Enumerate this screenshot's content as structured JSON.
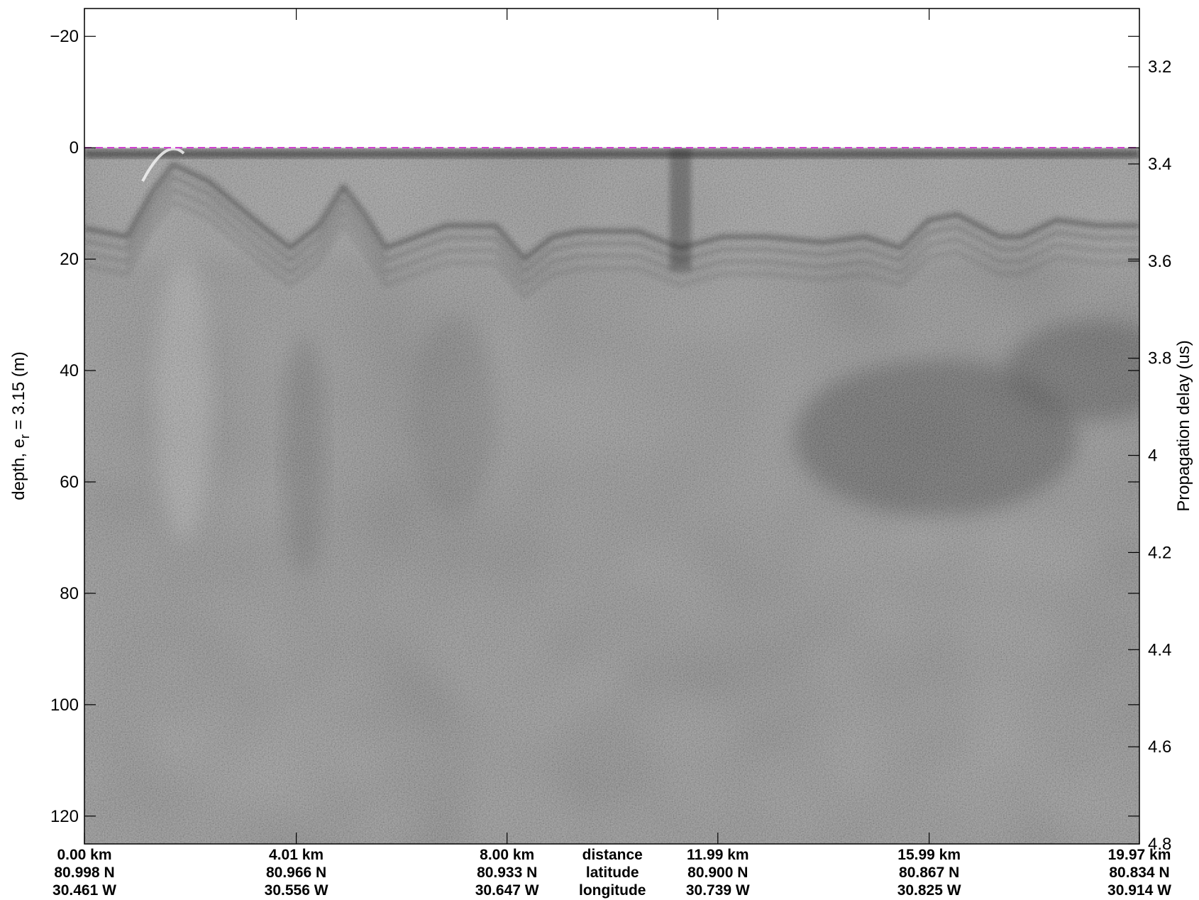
{
  "chart_data": {
    "type": "heatmap",
    "description_units": "radar echogram",
    "left_axis": {
      "label_main": "depth, e",
      "label_sub": "r",
      "label_tail": " = 3.15 (m)",
      "range": [
        -25,
        125
      ],
      "ticks": [
        -20,
        0,
        20,
        40,
        60,
        80,
        100,
        120
      ],
      "tick_labels": [
        "−20",
        "0",
        "20",
        "40",
        "60",
        "80",
        "100",
        "120"
      ],
      "reversed": true
    },
    "right_axis": {
      "label": "Propagation delay (us)",
      "range": [
        3.08,
        4.8
      ],
      "ticks": [
        3.2,
        3.4,
        3.6,
        3.8,
        4.0,
        4.2,
        4.4,
        4.6,
        4.8
      ],
      "tick_labels": [
        "3.2",
        "3.4",
        "3.6",
        "3.8",
        "4",
        "4.2",
        "4.4",
        "4.6",
        "4.8"
      ]
    },
    "x_axis": {
      "range_km": [
        0,
        19.97
      ],
      "ticks_km": [
        0,
        4.01,
        8.0,
        11.99,
        15.99,
        19.97
      ],
      "rows": [
        {
          "name": "distance",
          "labels": [
            "0.00 km",
            "4.01 km",
            "8.00 km",
            "11.99 km",
            "15.99 km",
            "19.97 km"
          ]
        },
        {
          "name": "latitude",
          "labels": [
            "80.998 N",
            "80.966 N",
            "80.933 N",
            "80.900 N",
            "80.867 N",
            "80.834 N"
          ]
        },
        {
          "name": "longitude",
          "labels": [
            "30.461 W",
            "30.556 W",
            "30.647 W",
            "30.739 W",
            "30.825 W",
            "30.914 W"
          ]
        }
      ]
    },
    "surface_line": {
      "depth": 0,
      "style": "dashed",
      "color": "#cc33cc"
    },
    "colormap": "gray"
  }
}
